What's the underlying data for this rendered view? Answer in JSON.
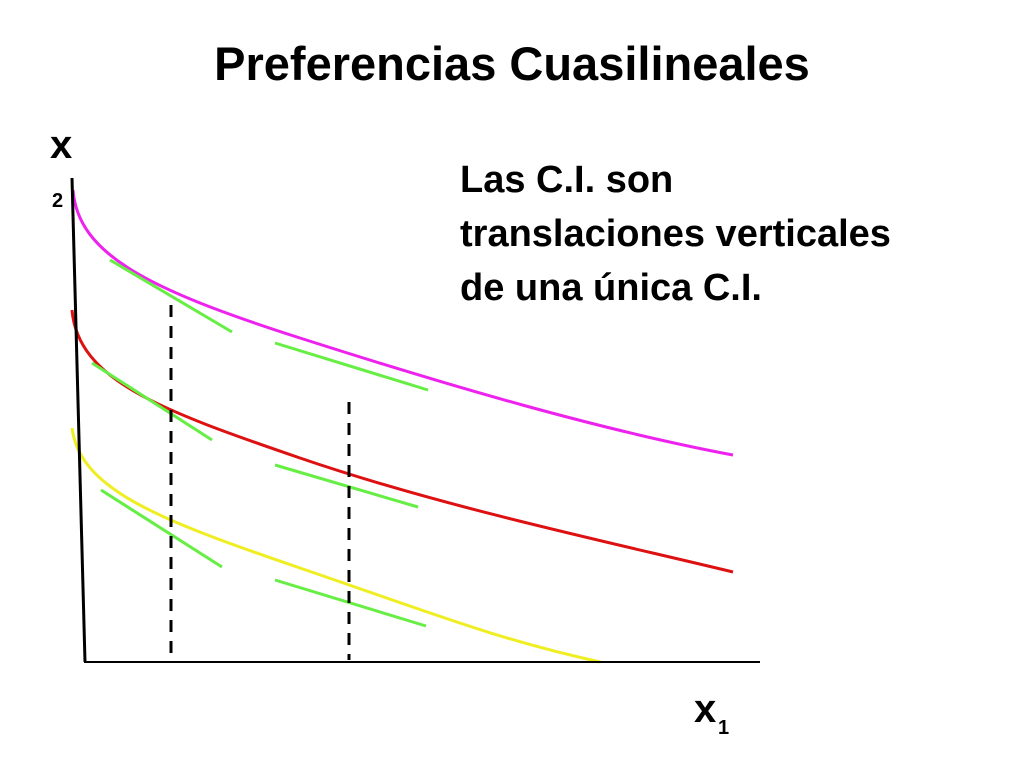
{
  "title": "Preferencias Cuasilineales",
  "axes": {
    "y_label": "x",
    "y_subscript": "2",
    "x_label": "x",
    "x_subscript": "1"
  },
  "note": [
    "Las C.I. son",
    "translaciones verticales",
    "de una única C.I."
  ]
}
